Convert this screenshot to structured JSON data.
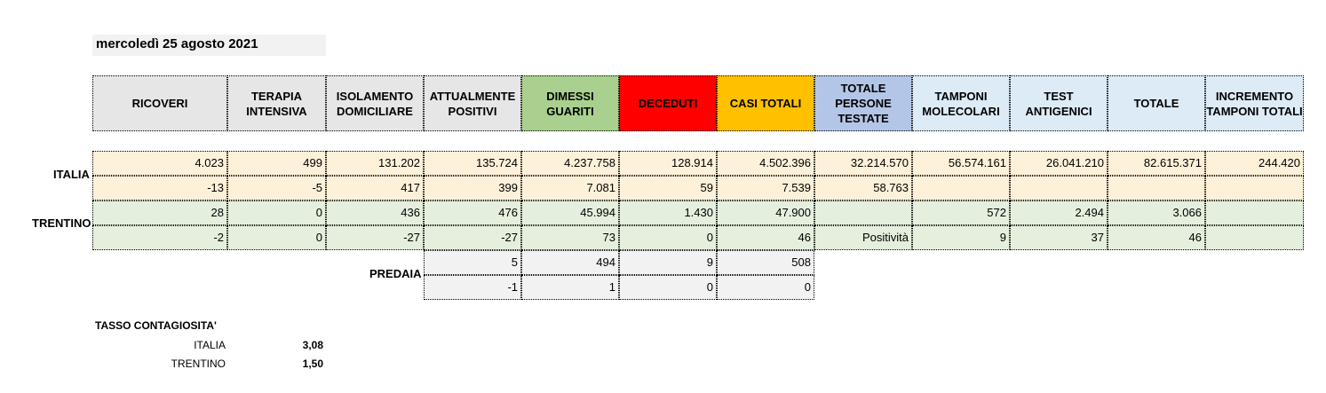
{
  "date": "mercoledì 25 agosto 2021",
  "colors": {
    "grey_header": "#e6e6e6",
    "dimessi": "#a9d08e",
    "deceduti": "#ff0000",
    "casi": "#ffc000",
    "totale_persone": "#b4c6e7",
    "blue_light": "#ddebf7",
    "italia_row": "#fdf1d9",
    "trentino_row": "#e4efdd"
  },
  "headers": [
    "RICOVERI",
    "TERAPIA INTENSIVA",
    "ISOLAMENTO DOMICILIARE",
    "ATTUALMENTE POSITIVI",
    "DIMESSI GUARITI",
    "DECEDUTI",
    "CASI TOTALI",
    "TOTALE PERSONE TESTATE",
    "TAMPONI MOLECOLARI",
    "TEST ANTIGENICI",
    "TOTALE",
    "INCREMENTO TAMPONI TOTALI"
  ],
  "italia": {
    "label": "ITALIA",
    "row1": [
      "4.023",
      "499",
      "131.202",
      "135.724",
      "4.237.758",
      "128.914",
      "4.502.396",
      "32.214.570",
      "56.574.161",
      "26.041.210",
      "82.615.371",
      "244.420"
    ],
    "row2": [
      "-13",
      "-5",
      "417",
      "399",
      "7.081",
      "59",
      "7.539",
      "58.763",
      "",
      "",
      "",
      ""
    ]
  },
  "trentino": {
    "label": "TRENTINO",
    "row1": [
      "28",
      "0",
      "436",
      "476",
      "45.994",
      "1.430",
      "47.900",
      "",
      "572",
      "2.494",
      "3.066",
      ""
    ],
    "row2": [
      "-2",
      "0",
      "-27",
      "-27",
      "73",
      "0",
      "46",
      "Positività",
      "9",
      "37",
      "46",
      ""
    ]
  },
  "predaia": {
    "label": "PREDAIA",
    "row1": [
      "5",
      "494",
      "9",
      "508"
    ],
    "row2": [
      "-1",
      "1",
      "0",
      "0"
    ]
  },
  "tasso": {
    "title": "TASSO CONTAGIOSITA'",
    "italia_label": "ITALIA",
    "italia_value": "3,08",
    "trentino_label": "TRENTINO",
    "trentino_value": "1,50"
  }
}
